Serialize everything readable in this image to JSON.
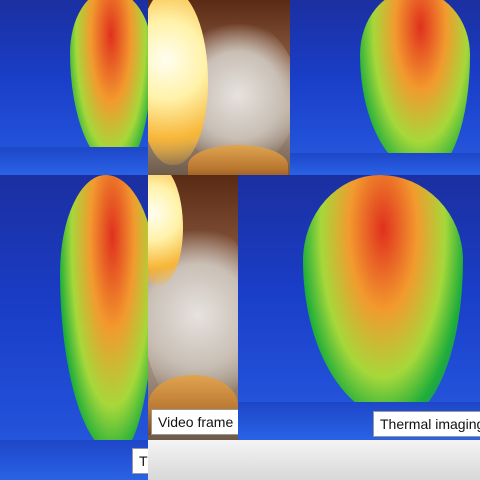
{
  "captions": {
    "video_frame": "Video frame",
    "thermal_imaging": "Thermal imaging",
    "thermal_cut": "Th"
  },
  "colors": {
    "thermal_background": "#1a3ec8",
    "hot_core": "#e0301e",
    "warm": "#f29a2e",
    "mid": "#7fd63a",
    "cool": "#1fae3a",
    "flame": "#fff2a8",
    "smoke": "#c9bfb5"
  }
}
